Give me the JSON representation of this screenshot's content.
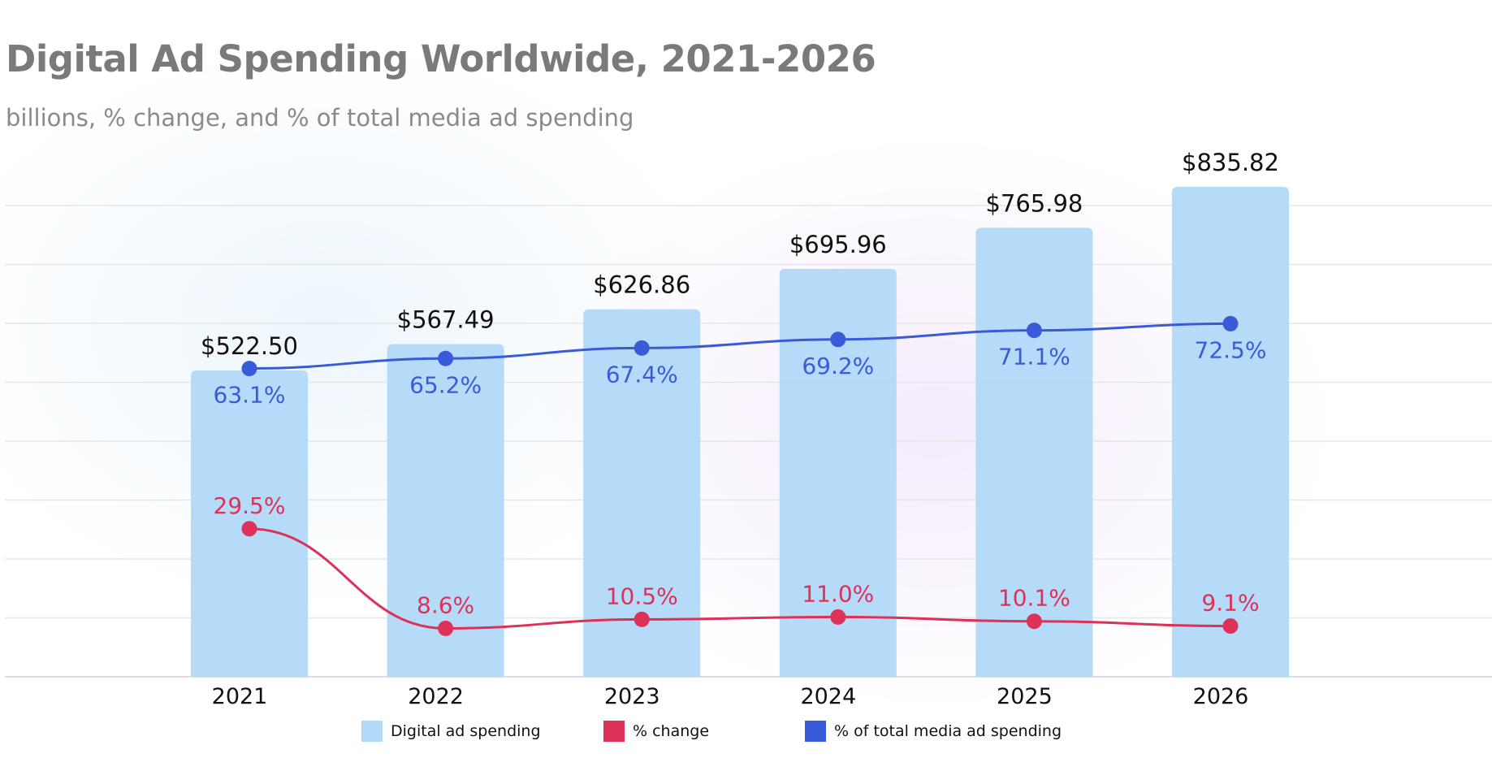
{
  "chart_data": {
    "type": "bar",
    "title": "Digital Ad Spending Worldwide, 2021-2026",
    "subtitle": "billions, % change, and % of total media ad spending",
    "categories": [
      "2021",
      "2022",
      "2023",
      "2024",
      "2025",
      "2026"
    ],
    "series": [
      {
        "name": "Digital ad spending",
        "type": "bar",
        "values": [
          522.5,
          567.49,
          626.86,
          695.96,
          765.98,
          835.82
        ],
        "labels": [
          "$522.50",
          "$567.49",
          "$626.86",
          "$695.96",
          "$765.98",
          "$835.82"
        ],
        "color": "#b1d9f8"
      },
      {
        "name": "% change",
        "type": "line",
        "values": [
          29.5,
          8.6,
          10.5,
          11.0,
          10.1,
          9.1
        ],
        "labels": [
          "29.5%",
          "8.6%",
          "10.5%",
          "11.0%",
          "10.1%",
          "9.1%"
        ],
        "color": "#dd3158"
      },
      {
        "name": "% of total media ad spending",
        "type": "line",
        "values": [
          63.1,
          65.2,
          67.4,
          69.2,
          71.1,
          72.5
        ],
        "labels": [
          "63.1%",
          "65.2%",
          "67.4%",
          "69.2%",
          "71.1%",
          "72.5%"
        ],
        "color": "#3a5bd9"
      }
    ],
    "grid": true,
    "legend": "bottom-center"
  }
}
